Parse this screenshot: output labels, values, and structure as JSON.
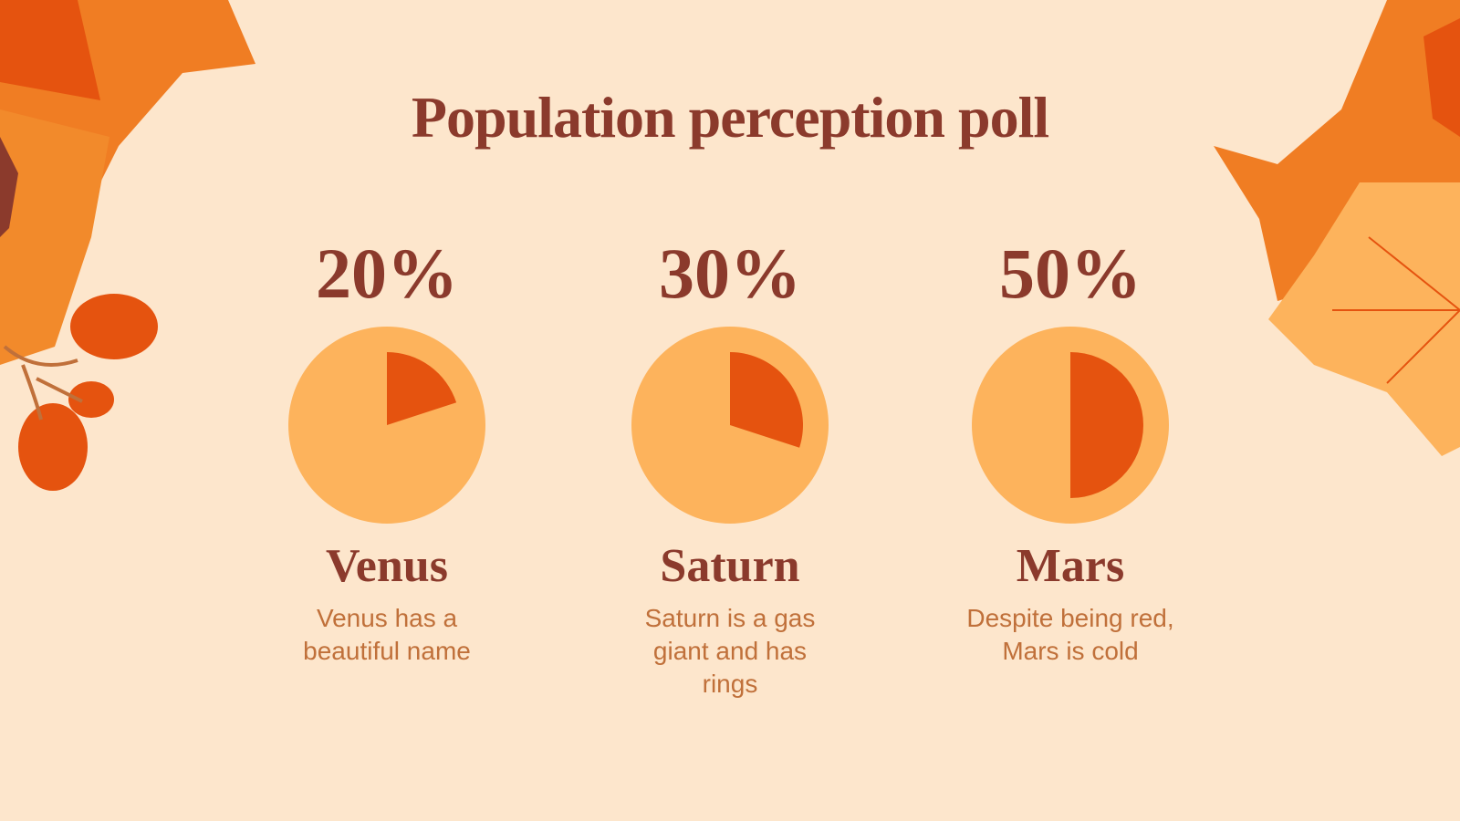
{
  "title": "Population perception poll",
  "chart_data": [
    {
      "type": "pie",
      "title": "Venus",
      "subtitle": "Venus has a beautiful name",
      "values": [
        20
      ],
      "value_labels": [
        "20%"
      ],
      "color": "#e5530f",
      "background": "#fdb35c"
    },
    {
      "type": "pie",
      "title": "Saturn",
      "subtitle": "Saturn is a gas giant and has rings",
      "values": [
        30
      ],
      "value_labels": [
        "30%"
      ],
      "color": "#e5530f",
      "background": "#fdb35c"
    },
    {
      "type": "pie",
      "title": "Mars",
      "subtitle": "Despite being red, Mars is cold",
      "values": [
        50
      ],
      "value_labels": [
        "50%"
      ],
      "color": "#e5530f",
      "background": "#fdb35c"
    }
  ]
}
